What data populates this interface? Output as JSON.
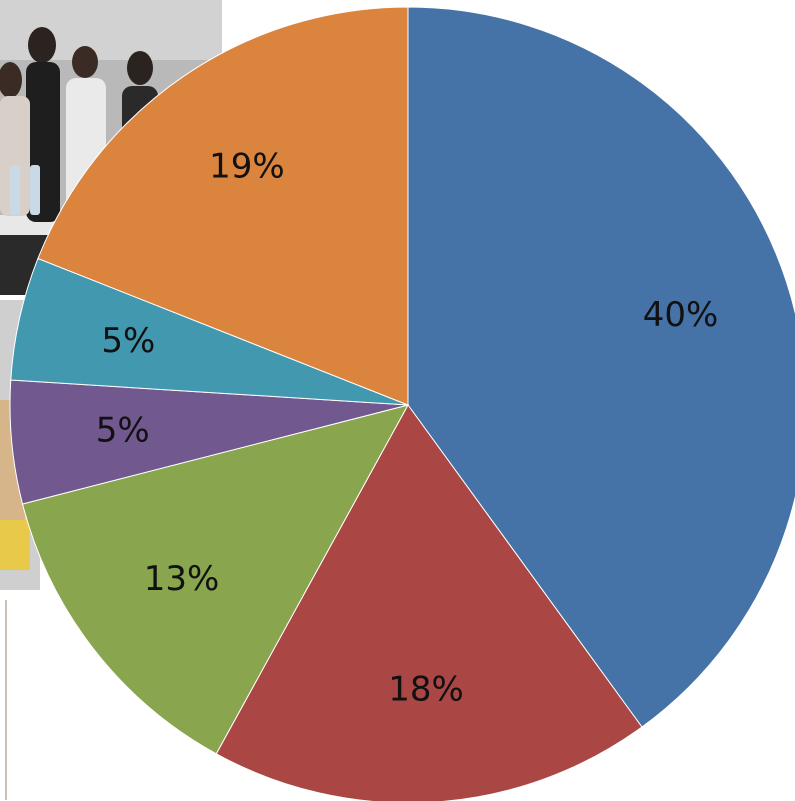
{
  "chart_data": {
    "type": "pie",
    "title": "",
    "slices": [
      {
        "label": "40%",
        "value": 40,
        "color": "#4572A7"
      },
      {
        "label": "18%",
        "value": 18,
        "color": "#AA4643"
      },
      {
        "label": "13%",
        "value": 13,
        "color": "#89A54E"
      },
      {
        "label": "5%",
        "value": 5,
        "color": "#71588F"
      },
      {
        "label": "5%",
        "value": 5,
        "color": "#4198AF"
      },
      {
        "label": "19%",
        "value": 19,
        "color": "#DB843D"
      }
    ],
    "legend": "none"
  },
  "background_photo": {
    "description_icon": "group-photo-icon"
  }
}
